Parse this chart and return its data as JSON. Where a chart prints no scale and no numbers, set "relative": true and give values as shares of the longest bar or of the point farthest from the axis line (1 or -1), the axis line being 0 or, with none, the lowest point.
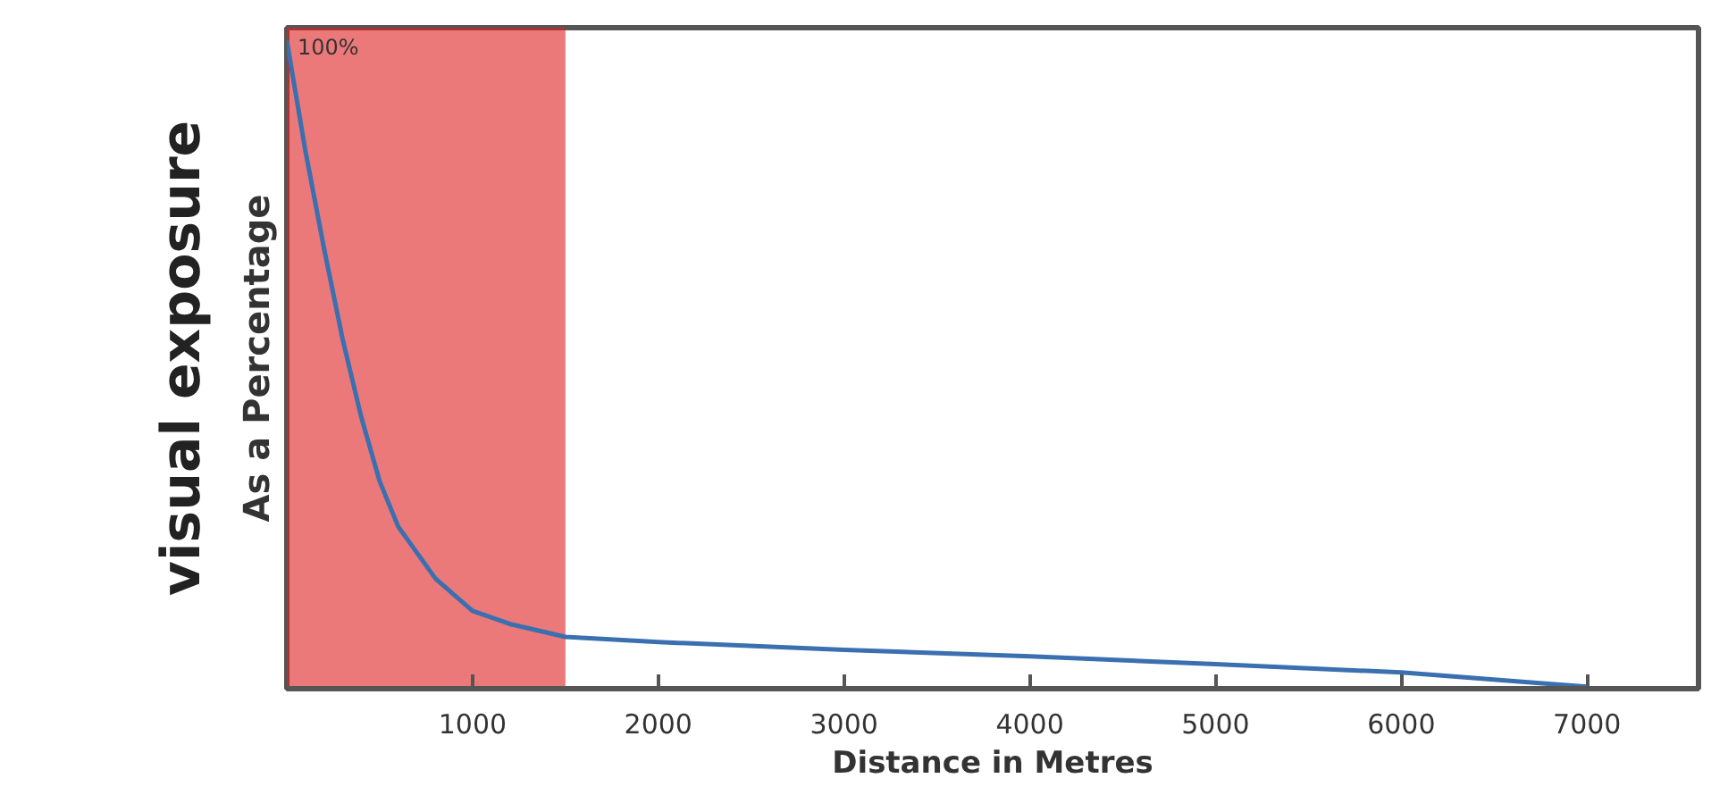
{
  "chart_data": {
    "type": "line",
    "relative": true,
    "xlabel": "Distance in Metres",
    "ylabel": "visual exposure",
    "annotations": [
      "As a Percentage",
      "100%"
    ],
    "xlim": [
      0,
      7600
    ],
    "xticks": [
      1000,
      2000,
      3000,
      4000,
      5000,
      6000,
      7000
    ],
    "bands": [
      {
        "axis": "x",
        "from": 0,
        "to": 1500,
        "color": "#dd1f1f"
      }
    ],
    "grid": false,
    "series": [
      {
        "color": "#3a6fb0",
        "x": [
          0,
          100,
          200,
          300,
          400,
          500,
          600,
          800,
          1000,
          1200,
          1500,
          2000,
          3000,
          4000,
          5000,
          6000,
          7000
        ],
        "values": [
          1,
          0.83,
          0.68,
          0.54,
          0.42,
          0.32,
          0.25,
          0.17,
          0.12,
          0.1,
          0.08,
          0.072,
          0.06,
          0.05,
          0.038,
          0.025,
          0.003
        ]
      }
    ]
  }
}
